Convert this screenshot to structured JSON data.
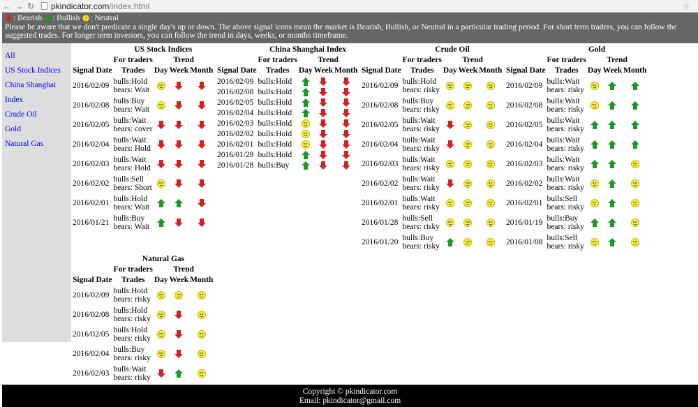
{
  "browser": {
    "url_host": "pkindicator.com",
    "url_path": "/index.html"
  },
  "banner": {
    "legend": [
      {
        "icon": "bear",
        "label": ": Bearish "
      },
      {
        "icon": "bull",
        "label": ": Bullish "
      },
      {
        "icon": "neutral",
        "label": ": Neutral"
      }
    ],
    "notice": "Please be aware that we don't predicate a single day's up or down. The above signal icons mean the market is Bearish, Bullish, or Neutral in a particular trading period. For short term traders, you can follow the suggested trades. For longer term investors, you can follow the trend in days, weeks, or months timeframe."
  },
  "sidebar": {
    "items": [
      "All",
      "US Stock Indices",
      "China Shanghai",
      "Index",
      "Crude Oil",
      "Gold",
      "Natural Gas"
    ]
  },
  "headers": {
    "for_traders": "For traders",
    "trend": "Trend",
    "signal_date": "Signal Date",
    "trades": "Trades",
    "day": "Day",
    "week": "Week",
    "month": "Month"
  },
  "colors": {
    "bearish": "#d42020",
    "bullish": "#1a9a20",
    "neutral": "#f5ee38",
    "banner": "#666666",
    "sidebar": "#dddddd"
  },
  "tables": [
    {
      "title": "US Stock Indices",
      "rows": [
        [
          "2016/02/09",
          "bulls:Hold",
          "bears: Wait",
          "neutral",
          "bear",
          "bear"
        ],
        [
          "2016/02/08",
          "bulls:Buy",
          "bears: Wait",
          "neutral",
          "bear",
          "bear"
        ],
        [
          "2016/02/05",
          "bulls:Wait",
          "bears: cover",
          "bear",
          "bear",
          "bear"
        ],
        [
          "2016/02/04",
          "bulls:Wait",
          "bears: Hold",
          "bear",
          "bear",
          "bear"
        ],
        [
          "2016/02/03",
          "bulls:Wait",
          "bears: Hold",
          "bear",
          "bear",
          "bear"
        ],
        [
          "2016/02/02",
          "bulls:Sell",
          "bears: Short",
          "neutral",
          "bear",
          "bear"
        ],
        [
          "2016/02/01",
          "bulls:Hold",
          "bears: Wait",
          "bull",
          "bull",
          "bear"
        ],
        [
          "2016/01/21",
          "bulls:Buy",
          "bears: Wait",
          "bull",
          "bear",
          "bear"
        ]
      ]
    },
    {
      "title": "China Shanghai Index",
      "rows": [
        [
          "2016/02/09",
          "bulls:Hold",
          "",
          "bull",
          "bear",
          "bear"
        ],
        [
          "2016/02/08",
          "bulls:Hold",
          "",
          "bull",
          "bear",
          "bear"
        ],
        [
          "2016/02/05",
          "bulls:Hold",
          "",
          "bull",
          "bear",
          "bear"
        ],
        [
          "2016/02/04",
          "bulls:Hold",
          "",
          "bull",
          "bear",
          "bear"
        ],
        [
          "2016/02/03",
          "bulls:Hold",
          "",
          "neutral",
          "bear",
          "bear"
        ],
        [
          "2016/02/02",
          "bulls:Hold",
          "",
          "neutral",
          "bear",
          "bear"
        ],
        [
          "2016/02/01",
          "bulls:Hold",
          "",
          "neutral",
          "bear",
          "bear"
        ],
        [
          "2016/01/29",
          "bulls:Hold",
          "",
          "bull",
          "bear",
          "bear"
        ],
        [
          "2016/01/28",
          "bulls:Buy",
          "",
          "bull",
          "bear",
          "bear"
        ]
      ]
    },
    {
      "title": "Crude Oil",
      "rows": [
        [
          "2016/02/09",
          "bulls:Hold",
          "bears: risky",
          "neutral",
          "neutral",
          "neutral"
        ],
        [
          "2016/02/08",
          "bulls:Buy",
          "bears: risky",
          "neutral",
          "neutral",
          "neutral"
        ],
        [
          "2016/02/05",
          "bulls:Wait",
          "bears: risky",
          "bear",
          "neutral",
          "neutral"
        ],
        [
          "2016/02/04",
          "bulls:Wait",
          "bears: risky",
          "bear",
          "neutral",
          "neutral"
        ],
        [
          "2016/02/03",
          "bulls:Wait",
          "bears: risky",
          "neutral",
          "neutral",
          "neutral"
        ],
        [
          "2016/02/02",
          "bulls:Wait",
          "bears: risky",
          "bear",
          "neutral",
          "neutral"
        ],
        [
          "2016/02/01",
          "bulls:Wait",
          "bears: risky",
          "neutral",
          "neutral",
          "neutral"
        ],
        [
          "2016/01/28",
          "bulls:Sell",
          "bears: risky",
          "neutral",
          "neutral",
          "neutral"
        ],
        [
          "2016/01/20",
          "bulls:Buy",
          "bears: risky",
          "bull",
          "neutral",
          "neutral"
        ]
      ]
    },
    {
      "title": "Gold",
      "rows": [
        [
          "2016/02/09",
          "bulls:Wait",
          "bears: risky",
          "neutral",
          "bull",
          "bull"
        ],
        [
          "2016/02/08",
          "bulls:Wait",
          "bears: risky",
          "neutral",
          "bull",
          "bull"
        ],
        [
          "2016/02/05",
          "bulls:Wait",
          "bears: risky",
          "bull",
          "bull",
          "bull"
        ],
        [
          "2016/02/04",
          "bulls:Wait",
          "bears: risky",
          "bull",
          "bull",
          "bull"
        ],
        [
          "2016/02/03",
          "bulls:Wait",
          "bears: risky",
          "bull",
          "bull",
          "neutral"
        ],
        [
          "2016/02/02",
          "bulls:Wait",
          "bears: risky",
          "neutral",
          "bull",
          "neutral"
        ],
        [
          "2016/02/01",
          "bulls:Sell",
          "bears: risky",
          "neutral",
          "bull",
          "neutral"
        ],
        [
          "2016/01/19",
          "bulls:Buy",
          "bears: risky",
          "bull",
          "bull",
          "neutral"
        ],
        [
          "2016/01/08",
          "bulls:Sell",
          "bears: risky",
          "neutral",
          "bull",
          "neutral"
        ]
      ]
    },
    {
      "title": "Natural Gas",
      "rows": [
        [
          "2016/02/09",
          "bulls:Hold",
          "bears: risky",
          "neutral",
          "neutral",
          "neutral"
        ],
        [
          "2016/02/08",
          "bulls:Hold",
          "bears: risky",
          "neutral",
          "bear",
          "neutral"
        ],
        [
          "2016/02/05",
          "bulls:Hold",
          "bears: risky",
          "neutral",
          "bear",
          "neutral"
        ],
        [
          "2016/02/04",
          "bulls:Buy",
          "bears: risky",
          "neutral",
          "bear",
          "neutral"
        ],
        [
          "2016/02/03",
          "bulls:Wait",
          "bears: risky",
          "bear",
          "bull",
          "neutral"
        ]
      ]
    }
  ],
  "footer": {
    "copyright": "Copyright © pkindicator.com",
    "email": "Email: pkindicator@gmail.com"
  }
}
